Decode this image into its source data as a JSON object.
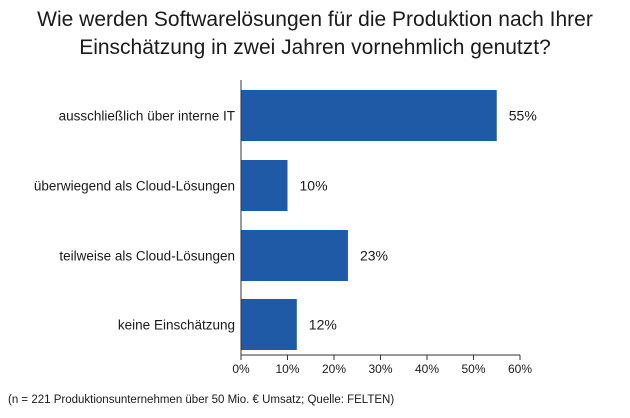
{
  "title": {
    "line1": "Wie werden Softwarelösungen für die Produktion nach Ihrer",
    "line2": "Einschätzung in zwei Jahren vornehmlich genutzt?"
  },
  "footnote": "(n = 221 Produktionsunternehmen über 50 Mio. € Umsatz; Quelle: FELTEN)",
  "colors": {
    "bar": "#1f5aa6",
    "axis": "#333333"
  },
  "chart_data": {
    "type": "bar",
    "orientation": "horizontal",
    "categories": [
      "ausschließlich über interne IT",
      "überwiegend als Cloud-Lösungen",
      "teilweise als Cloud-Lösungen",
      "keine Einschätzung"
    ],
    "values": [
      55,
      10,
      23,
      12
    ],
    "value_labels": [
      "55%",
      "10%",
      "23%",
      "12%"
    ],
    "xlim": [
      0,
      60
    ],
    "xticks": [
      0,
      10,
      20,
      30,
      40,
      50,
      60
    ],
    "xtick_labels": [
      "0%",
      "10%",
      "20%",
      "30%",
      "40%",
      "50%",
      "60%"
    ],
    "grid": false,
    "legend": "none"
  }
}
